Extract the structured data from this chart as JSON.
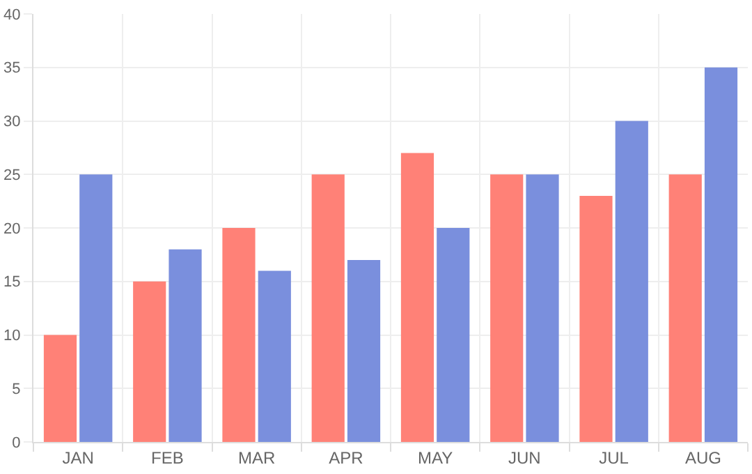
{
  "chart_data": {
    "type": "bar",
    "categories": [
      "JAN",
      "FEB",
      "MAR",
      "APR",
      "MAY",
      "JUN",
      "JUL",
      "AUG"
    ],
    "series": [
      {
        "color": "#ff8177",
        "values": [
          10,
          15,
          20,
          25,
          27,
          25,
          23,
          25
        ]
      },
      {
        "color": "#7a8fdd",
        "values": [
          25,
          18,
          16,
          17,
          20,
          25,
          30,
          35
        ]
      }
    ],
    "ylim": [
      0,
      40
    ],
    "yticks": [
      0,
      5,
      10,
      15,
      20,
      25,
      30,
      35,
      40
    ],
    "grid": true
  }
}
